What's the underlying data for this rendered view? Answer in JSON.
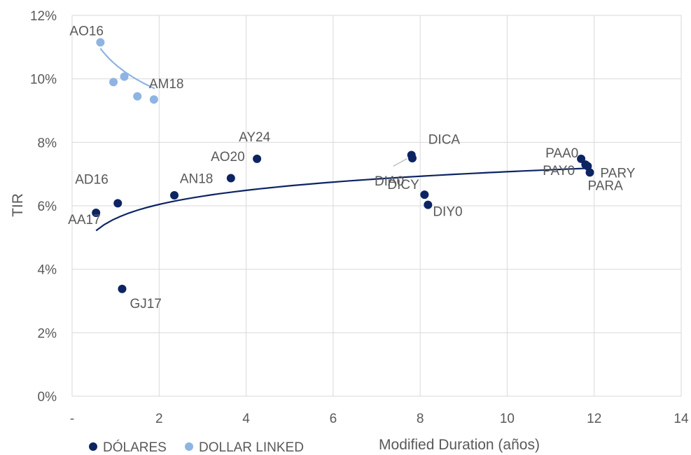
{
  "chart_data": {
    "type": "scatter",
    "xlabel": "Modified Duration (años)",
    "ylabel": "TIR",
    "xlim": [
      0,
      14
    ],
    "ylim": [
      0,
      12
    ],
    "x_ticks": [
      "-",
      "2",
      "4",
      "6",
      "8",
      "10",
      "12",
      "14"
    ],
    "y_ticks": [
      "0%",
      "2%",
      "4%",
      "6%",
      "8%",
      "10%",
      "12%"
    ],
    "grid": true,
    "legend_position": "bottom-left",
    "series": [
      {
        "name": "DÓLARES",
        "color": "#0d2463",
        "points": [
          {
            "label": "AA17",
            "x": 0.55,
            "y": 5.78
          },
          {
            "label": "AD16",
            "x": 1.05,
            "y": 6.08
          },
          {
            "label": "GJ17",
            "x": 1.15,
            "y": 3.38
          },
          {
            "label": "",
            "x": 2.35,
            "y": 6.33
          },
          {
            "label": "AN18",
            "x": 3.65,
            "y": 6.87
          },
          {
            "label": "AO20",
            "x": 4.25,
            "y": 7.48
          },
          {
            "label": "AY24",
            "x": null,
            "y": null
          },
          {
            "label": "DICA",
            "x": 7.8,
            "y": 7.6
          },
          {
            "label": "DIA0",
            "x": 7.82,
            "y": 7.5
          },
          {
            "label": "DICY",
            "x": 8.1,
            "y": 6.35
          },
          {
            "label": "DIY0",
            "x": 8.18,
            "y": 6.03
          },
          {
            "label": "PAA0",
            "x": 11.7,
            "y": 7.48
          },
          {
            "label": "PAY0",
            "x": 11.8,
            "y": 7.3
          },
          {
            "label": "PARY",
            "x": 11.85,
            "y": 7.25
          },
          {
            "label": "PARA",
            "x": 11.9,
            "y": 7.05
          }
        ],
        "trendline": {
          "type": "log",
          "x": [
            0.55,
            11.85
          ],
          "a": 5.6,
          "b": 0.64
        }
      },
      {
        "name": "DOLLAR LINKED",
        "color": "#8eb4e3",
        "points": [
          {
            "label": "AO16",
            "x": 0.65,
            "y": 11.15
          },
          {
            "label": "",
            "x": 0.95,
            "y": 9.9
          },
          {
            "label": "",
            "x": 1.2,
            "y": 10.07
          },
          {
            "label": "",
            "x": 1.5,
            "y": 9.45
          },
          {
            "label": "AM18",
            "x": 1.88,
            "y": 9.35
          }
        ],
        "trendline": {
          "type": "log",
          "x": [
            0.65,
            1.9
          ],
          "a": 10.45,
          "b": -1.18
        }
      }
    ]
  }
}
